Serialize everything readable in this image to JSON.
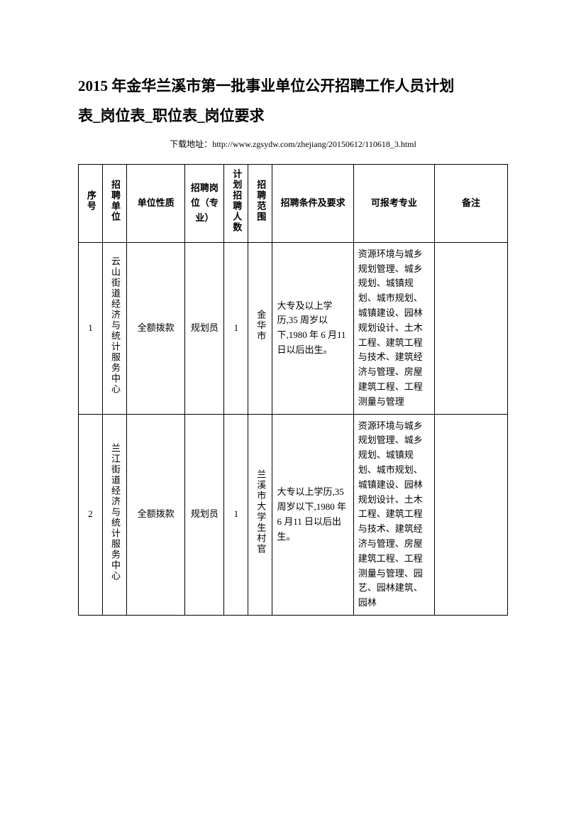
{
  "title_line1": "2015 年金华兰溪市第一批事业单位公开招聘工作人员计划",
  "title_line2": "表_岗位表_职位表_岗位要求",
  "download_label": "下载地址：",
  "download_url": "http://www.zgsydw.com/zhejiang/20150612/110618_3.html",
  "headers": {
    "seq": "序号",
    "unit": "招聘单位",
    "nature": "单位性质",
    "position": "招聘岗位（专业）",
    "count": "计划招聘人数",
    "scope": "招聘范围",
    "conditions": "招聘条件及要求",
    "majors": "可报考专业",
    "remarks": "备注"
  },
  "rows": [
    {
      "seq": "1",
      "unit": "云山街道经济与统计服务中心",
      "nature": "全额拨款",
      "position": "规划员",
      "count": "1",
      "scope": "金华市",
      "conditions": "大专及以上学历,35 周岁以下,1980 年 6 月11 日以后出生。",
      "majors": "资源环境与城乡规划管理、城乡规划、城镇规划、城市规划、城镇建设、园林规划设计、土木工程、建筑工程与技术、建筑经济与管理、房屋建筑工程、工程测量与管理",
      "remarks": ""
    },
    {
      "seq": "2",
      "unit": "兰江街道经济与统计服务中心",
      "nature": "全额拨款",
      "position": "规划员",
      "count": "1",
      "scope": "兰溪市大学生村官",
      "conditions": "大专以上学历,35 周岁以下,1980 年 6 月11 日以后出生。",
      "majors": "资源环境与城乡规划管理、城乡规划、城镇规划、城市规划、城镇建设、园林规划设计、土木工程、建筑工程与技术、建筑经济与管理、房屋建筑工程、工程测量与管理、园艺、园林建筑、园林",
      "remarks": ""
    }
  ]
}
